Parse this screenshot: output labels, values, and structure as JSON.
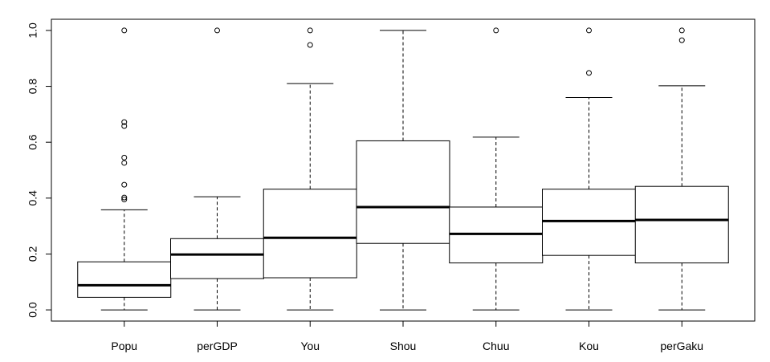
{
  "chart_data": {
    "type": "box",
    "title": "",
    "xlabel": "",
    "ylabel": "",
    "ylim": [
      -0.04,
      1.04
    ],
    "yticks": [
      "0.0",
      "0.2",
      "0.4",
      "0.6",
      "0.8",
      "1.0"
    ],
    "grid": false,
    "legend": "none",
    "categories": [
      "Popu",
      "perGDP",
      "You",
      "Shou",
      "Chuu",
      "Kou",
      "perGaku"
    ],
    "boxes": [
      {
        "whisker_low": 0.0,
        "q1": 0.045,
        "median": 0.088,
        "q3": 0.172,
        "whisker_high": 0.358,
        "outliers": [
          0.395,
          0.402,
          0.448,
          0.526,
          0.545,
          0.658,
          0.672,
          1.0
        ]
      },
      {
        "whisker_low": 0.0,
        "q1": 0.112,
        "median": 0.198,
        "q3": 0.255,
        "whisker_high": 0.405,
        "outliers": [
          1.0
        ]
      },
      {
        "whisker_low": 0.0,
        "q1": 0.115,
        "median": 0.258,
        "q3": 0.432,
        "whisker_high": 0.81,
        "outliers": [
          0.948,
          1.0
        ]
      },
      {
        "whisker_low": 0.0,
        "q1": 0.238,
        "median": 0.368,
        "q3": 0.605,
        "whisker_high": 1.0,
        "outliers": []
      },
      {
        "whisker_low": 0.0,
        "q1": 0.168,
        "median": 0.272,
        "q3": 0.368,
        "whisker_high": 0.618,
        "outliers": [
          1.0
        ]
      },
      {
        "whisker_low": 0.0,
        "q1": 0.195,
        "median": 0.318,
        "q3": 0.432,
        "whisker_high": 0.76,
        "outliers": [
          0.848,
          1.0
        ]
      },
      {
        "whisker_low": 0.0,
        "q1": 0.168,
        "median": 0.322,
        "q3": 0.442,
        "whisker_high": 0.802,
        "outliers": [
          0.965,
          1.0
        ]
      }
    ]
  }
}
